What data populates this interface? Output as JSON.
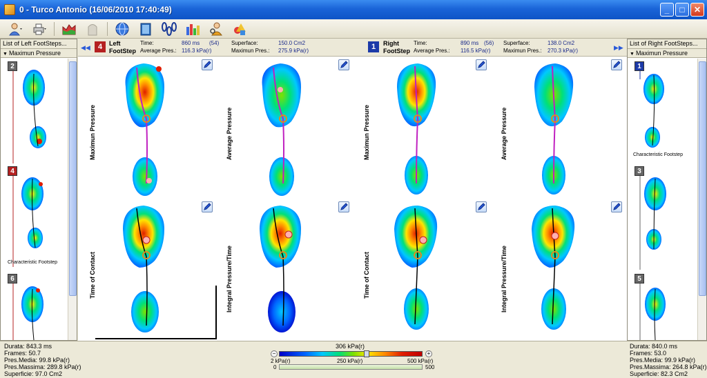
{
  "window": {
    "title": "0 -  Turco Antonio  (16/06/2010 17:40:49)",
    "buttons": {
      "minimize": "_",
      "maximize": "□",
      "close": "✕"
    }
  },
  "toolbar": {
    "icons": [
      "patient-icon",
      "print-icon",
      "chart-icon",
      "ghost-icon",
      "globe-icon",
      "book-icon",
      "footsteps-icon",
      "bars-icon",
      "user-search-icon",
      "shapes-icon"
    ]
  },
  "left_panel": {
    "header": "List of Left FootSteps...",
    "subheader": "Maximun Pressure",
    "items": [
      {
        "badge": "2",
        "badge_color": "gray"
      },
      {
        "badge": "4",
        "badge_color": "red",
        "label": "Characteristic Footstep"
      },
      {
        "badge": "6",
        "badge_color": "gray"
      }
    ]
  },
  "right_panel": {
    "header": "List of Right FootSteps...",
    "subheader": "Maximun Pressure",
    "items": [
      {
        "badge": "1",
        "badge_color": "blue",
        "label": "Characteristic Footstep"
      },
      {
        "badge": "3",
        "badge_color": "gray"
      },
      {
        "badge": "5",
        "badge_color": "gray"
      }
    ]
  },
  "info": {
    "left": {
      "number": "4",
      "title_line1": "Left",
      "title_line2": "FootStep",
      "time_label": "Time:",
      "time_value": "860 ms",
      "time_frames": "(54)",
      "avg_label": "Average Pres.:",
      "avg_value": "116.3 kPa(r)",
      "surf_label": "Superface:",
      "surf_value": "150.0 Cm2",
      "max_label": "Maximun Pres.:",
      "max_value": "275.9 kPa(r)"
    },
    "right": {
      "number": "1",
      "title_line1": "Right",
      "title_line2": "FootStep",
      "time_label": "Time:",
      "time_value": "890 ms",
      "time_frames": "(56)",
      "avg_label": "Average Pres.:",
      "avg_value": "116.5 kPa(r)",
      "surf_label": "Superface:",
      "surf_value": "138.0 Cm2",
      "max_label": "Maximun Pres.:",
      "max_value": "270.3 kPa(r)"
    },
    "nav_prev": "◀◀",
    "nav_next": "▶▶"
  },
  "main": {
    "labels": {
      "c1": "Maximun Pressure",
      "c2": "Average Pressure",
      "c3": "Maximun Pressure",
      "c4": "Average Pressure",
      "c5": "Time of Contact",
      "c6": "Integral Pressure/Time",
      "c7": "Time of Contact",
      "c8": "Integral Pressure/Time"
    }
  },
  "bottom": {
    "left": {
      "durata": "Durata: 843.3 ms",
      "frames": "Frames: 50.7",
      "media": "Pres.Media: 99.8 kPa(r)",
      "massima": "Pres.Massima: 289.8 kPa(r)",
      "superficie": "Superficie: 97.0 Cm2"
    },
    "right": {
      "durata": "Durata: 840.0 ms",
      "frames": "Frames: 53.0",
      "media": "Pres.Media: 99.9 kPa(r)",
      "massima": "Pres.Massima: 264.8 kPa(r)",
      "superficie": "Superficie: 82.3 Cm2"
    },
    "scale": {
      "current": "306 kPa(r)",
      "min": "2 kPa(r)",
      "mid": "250 kPa(r)",
      "max": "500 kPa(r)",
      "minus": "−",
      "plus": "+",
      "slider_min": "0",
      "slider_max": "500",
      "current_fraction": 0.61
    }
  }
}
